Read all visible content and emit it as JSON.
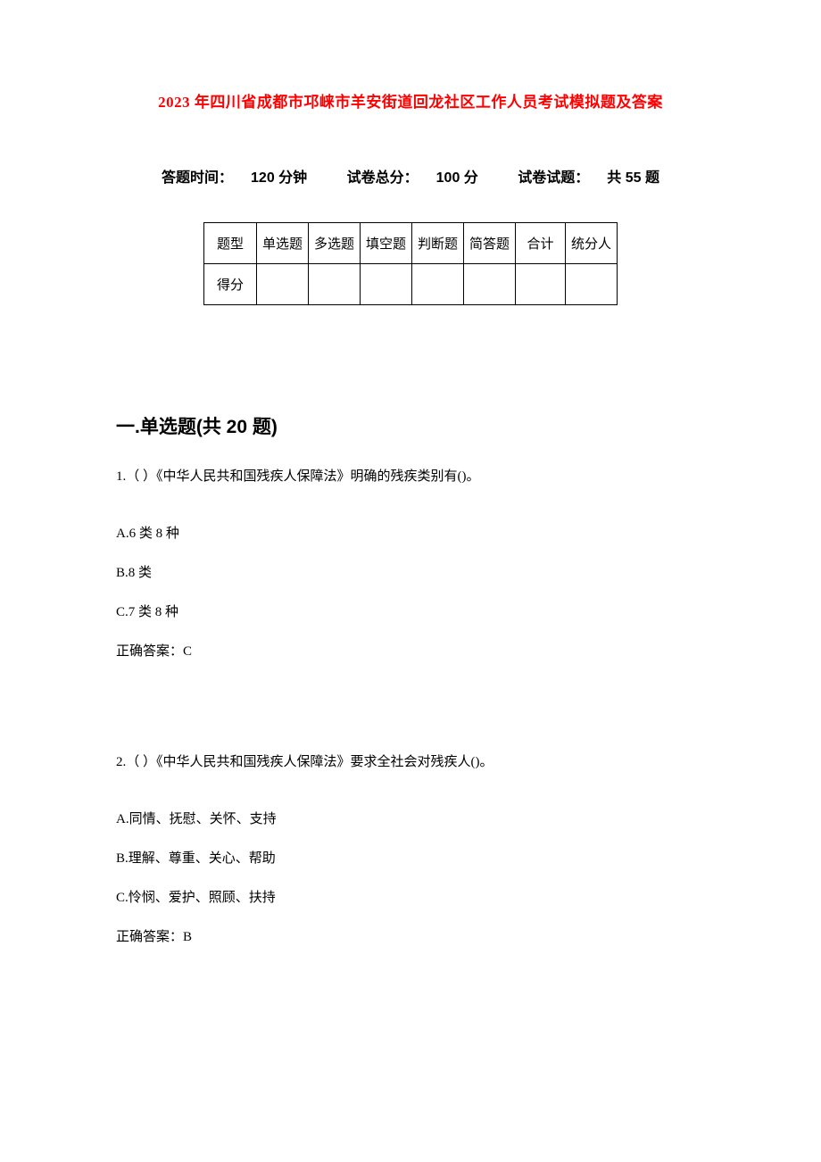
{
  "document": {
    "title": "2023 年四川省成都市邛崃市羊安街道回龙社区工作人员考试模拟题及答案",
    "title_color": "#ff0000",
    "title_fontsize": 17,
    "background_color": "#ffffff",
    "text_color": "#000000"
  },
  "exam_info": {
    "time_label": "答题时间：",
    "time_value": "120 分钟",
    "total_score_label": "试卷总分：",
    "total_score_value": "100 分",
    "question_count_label": "试卷试题：",
    "question_count_value": "共 55 题",
    "fontsize": 16
  },
  "score_table": {
    "border_color": "#000000",
    "fontsize": 15,
    "header_row": {
      "label": "题型",
      "columns": [
        "单选题",
        "多选题",
        "填空题",
        "判断题",
        "简答题",
        "合计",
        "统分人"
      ]
    },
    "score_row": {
      "label": "得分",
      "cells": [
        "",
        "",
        "",
        "",
        "",
        "",
        ""
      ]
    }
  },
  "section1": {
    "heading": "一.单选题(共 20 题)",
    "fontsize": 21
  },
  "questions": [
    {
      "number": "1.",
      "text": "（ ）《中华人民共和国残疾人保障法》明确的残疾类别有()。",
      "options": [
        {
          "label": "A.6 类 8 种"
        },
        {
          "label": "B.8 类"
        },
        {
          "label": "C.7 类 8 种"
        }
      ],
      "answer_label": "正确答案：",
      "answer_value": "C"
    },
    {
      "number": "2.",
      "text": "（ ）《中华人民共和国残疾人保障法》要求全社会对残疾人()。",
      "options": [
        {
          "label": "A.同情、抚慰、关怀、支持"
        },
        {
          "label": "B.理解、尊重、关心、帮助"
        },
        {
          "label": "C.怜悯、爱护、照顾、扶持"
        }
      ],
      "answer_label": "正确答案：",
      "answer_value": "B"
    }
  ],
  "body_fontsize": 15
}
